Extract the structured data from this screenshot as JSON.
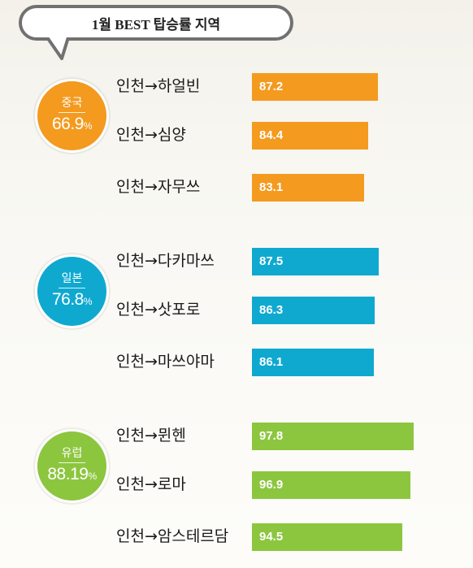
{
  "title": "1월 BEST 탑승률 지역",
  "colors": {
    "china": "#f39a1f",
    "japan": "#0fa9d0",
    "europe": "#8cc63f"
  },
  "chart_data": {
    "type": "bar",
    "title": "1월 BEST 탑승률 지역",
    "xlim": [
      0,
      100
    ],
    "groups": [
      {
        "region": "중국",
        "rate": "66.9",
        "unit": "%",
        "categories": [
          "인천→하얼빈",
          "인천→심양",
          "인천→자무쓰"
        ],
        "values": [
          87.2,
          84.4,
          83.1
        ]
      },
      {
        "region": "일본",
        "rate": "76.8",
        "unit": "%",
        "categories": [
          "인천→다카마쓰",
          "인천→삿포로",
          "인천→마쓰야마"
        ],
        "values": [
          87.5,
          86.3,
          86.1
        ]
      },
      {
        "region": "유럽",
        "rate": "88.19",
        "unit": "%",
        "categories": [
          "인천→뮌헨",
          "인천→로마",
          "인천→암스테르담"
        ],
        "values": [
          97.8,
          96.9,
          94.5
        ]
      }
    ]
  }
}
